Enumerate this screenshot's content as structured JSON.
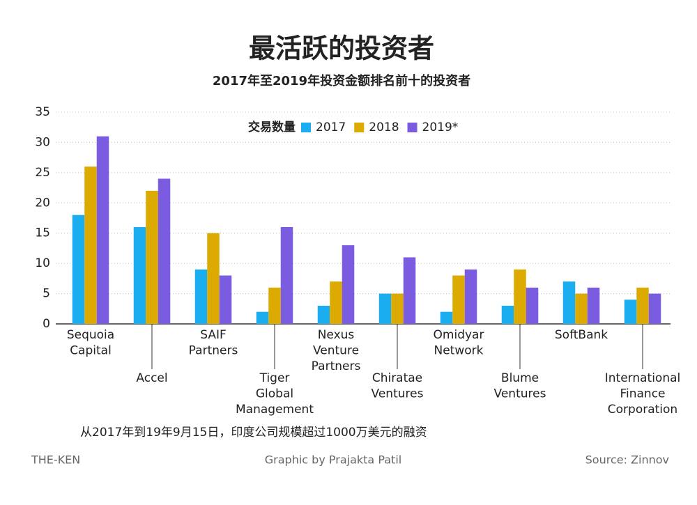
{
  "chart_data": {
    "type": "bar",
    "title": "最活跃的投资者",
    "subtitle": "2017年至2019年投资金额排名前十的投资者",
    "legend_title": "交易数量",
    "categories": [
      [
        "Sequoia",
        "Capital"
      ],
      [
        "Accel"
      ],
      [
        "SAIF",
        "Partners"
      ],
      [
        "Tiger",
        "Global",
        "Management"
      ],
      [
        "Nexus",
        "Venture",
        "Partners"
      ],
      [
        "Chiratae",
        "Ventures"
      ],
      [
        "Omidyar",
        "Network"
      ],
      [
        "Blume",
        "Ventures"
      ],
      [
        "SoftBank"
      ],
      [
        "International",
        "Finance",
        "Corporation"
      ]
    ],
    "series": [
      {
        "name": "2017",
        "color": "#1aaef0",
        "values": [
          18,
          16,
          9,
          2,
          3,
          5,
          2,
          3,
          7,
          4
        ]
      },
      {
        "name": "2018",
        "color": "#dcaa00",
        "values": [
          26,
          22,
          15,
          6,
          7,
          5,
          8,
          9,
          5,
          6
        ]
      },
      {
        "name": "2019*",
        "color": "#7b5ce0",
        "values": [
          31,
          24,
          8,
          16,
          13,
          11,
          9,
          6,
          6,
          5
        ]
      }
    ],
    "ylim": [
      0,
      35
    ],
    "yticks": [
      0,
      5,
      10,
      15,
      20,
      25,
      30,
      35
    ],
    "grid": true,
    "note": "从2017年到19年9月15日，印度公司规模超过1000万美元的融资",
    "brand": "THE-KEN",
    "credit": "Graphic by Prajakta Patil",
    "source": "Source: Zinnov"
  }
}
